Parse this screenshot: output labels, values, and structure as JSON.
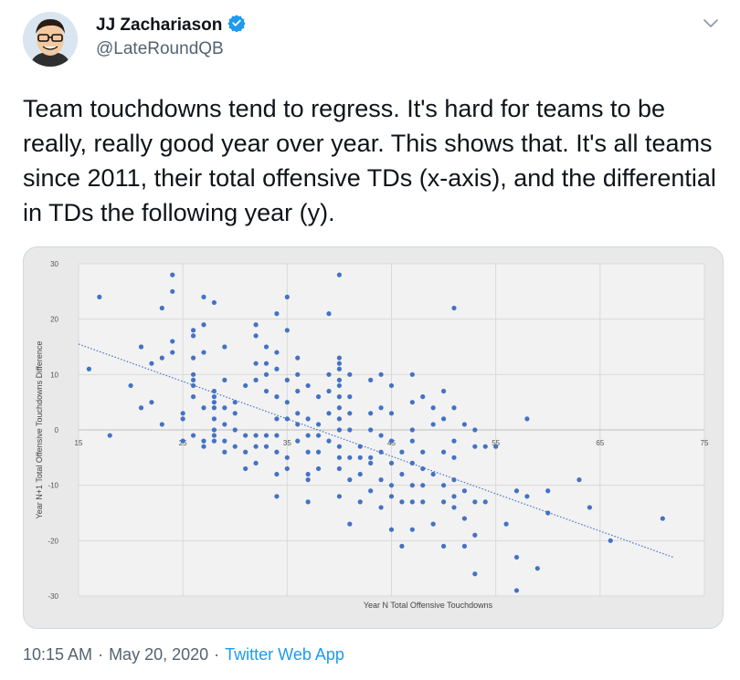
{
  "user": {
    "name": "JJ Zachariason",
    "handle": "@LateRoundQB"
  },
  "tweet": {
    "text": "Team touchdowns tend to regress. It's hard for teams to be really, really good year over year. This shows that. It's all teams since 2011, their total offensive TDs (x-axis), and the differential in TDs the following year (y).",
    "time": "10:15 AM",
    "dot": "·",
    "date": "May 20, 2020",
    "app": "Twitter Web App"
  },
  "icons": {
    "verified": "verified-badge-icon",
    "menu": "chevron-down-icon"
  },
  "colors": {
    "point": "#4472c4",
    "trend": "#4472c4",
    "chart_bg": "#ebebeb",
    "link": "#1d9bf0"
  },
  "chart_data": {
    "type": "scatter",
    "xlabel": "Year N Total Offensive Touchdowns",
    "ylabel": "Year N+1 Total Offensive Touchdowns Difference",
    "xlim": [
      15,
      75
    ],
    "ylim": [
      -30,
      30
    ],
    "x_ticks": [
      "15",
      "25",
      "35",
      "45",
      "55",
      "65",
      "75"
    ],
    "y_ticks": [
      "30",
      "20",
      "10",
      "0",
      "-10",
      "-20",
      "-30"
    ],
    "grid": true,
    "trendline": {
      "x": [
        15,
        72
      ],
      "y": [
        15.5,
        -23
      ]
    },
    "points": [
      [
        16,
        11
      ],
      [
        17,
        24
      ],
      [
        18,
        -1
      ],
      [
        20,
        8
      ],
      [
        21,
        15
      ],
      [
        21,
        4
      ],
      [
        22,
        12
      ],
      [
        22,
        5
      ],
      [
        23,
        22
      ],
      [
        23,
        1
      ],
      [
        23,
        13
      ],
      [
        24,
        14
      ],
      [
        24,
        16
      ],
      [
        24,
        25
      ],
      [
        24,
        28
      ],
      [
        25,
        3
      ],
      [
        25,
        -2
      ],
      [
        25,
        2
      ],
      [
        26,
        8
      ],
      [
        26,
        10
      ],
      [
        26,
        -1
      ],
      [
        26,
        9
      ],
      [
        26,
        17
      ],
      [
        26,
        13
      ],
      [
        26,
        6
      ],
      [
        26,
        18
      ],
      [
        27,
        24
      ],
      [
        27,
        19
      ],
      [
        27,
        14
      ],
      [
        27,
        4
      ],
      [
        27,
        -3
      ],
      [
        27,
        -2
      ],
      [
        28,
        23
      ],
      [
        28,
        7
      ],
      [
        28,
        6
      ],
      [
        28,
        5
      ],
      [
        28,
        4
      ],
      [
        28,
        2
      ],
      [
        28,
        0
      ],
      [
        28,
        -1
      ],
      [
        28,
        -2
      ],
      [
        29,
        -2
      ],
      [
        29,
        15
      ],
      [
        29,
        9
      ],
      [
        29,
        4
      ],
      [
        29,
        1
      ],
      [
        29,
        -4
      ],
      [
        30,
        5
      ],
      [
        30,
        3
      ],
      [
        30,
        -3
      ],
      [
        30,
        0
      ],
      [
        31,
        8
      ],
      [
        31,
        -1
      ],
      [
        31,
        -4
      ],
      [
        31,
        -7
      ],
      [
        32,
        19
      ],
      [
        32,
        17
      ],
      [
        32,
        12
      ],
      [
        32,
        9
      ],
      [
        32,
        -1
      ],
      [
        32,
        -3
      ],
      [
        32,
        -6
      ],
      [
        33,
        15
      ],
      [
        33,
        12
      ],
      [
        33,
        10
      ],
      [
        33,
        7
      ],
      [
        33,
        -3
      ],
      [
        33,
        -1
      ],
      [
        34,
        21
      ],
      [
        34,
        14
      ],
      [
        34,
        11
      ],
      [
        34,
        6
      ],
      [
        34,
        2
      ],
      [
        34,
        -1
      ],
      [
        34,
        -4
      ],
      [
        34,
        -12
      ],
      [
        34,
        -8
      ],
      [
        35,
        24
      ],
      [
        35,
        18
      ],
      [
        35,
        9
      ],
      [
        35,
        5
      ],
      [
        35,
        2
      ],
      [
        35,
        -5
      ],
      [
        35,
        -7
      ],
      [
        36,
        13
      ],
      [
        36,
        10
      ],
      [
        36,
        7
      ],
      [
        36,
        3
      ],
      [
        36,
        1
      ],
      [
        36,
        -2
      ],
      [
        37,
        8
      ],
      [
        37,
        2
      ],
      [
        37,
        -1
      ],
      [
        37,
        -4
      ],
      [
        37,
        -8
      ],
      [
        37,
        -9
      ],
      [
        37,
        -13
      ],
      [
        38,
        6
      ],
      [
        38,
        1
      ],
      [
        38,
        -1
      ],
      [
        38,
        -4
      ],
      [
        38,
        -7
      ],
      [
        39,
        21
      ],
      [
        39,
        10
      ],
      [
        39,
        7
      ],
      [
        39,
        3
      ],
      [
        39,
        -2
      ],
      [
        40,
        28
      ],
      [
        40,
        13
      ],
      [
        40,
        12
      ],
      [
        40,
        11
      ],
      [
        40,
        9
      ],
      [
        40,
        8
      ],
      [
        40,
        6
      ],
      [
        40,
        4
      ],
      [
        40,
        2
      ],
      [
        40,
        0
      ],
      [
        40,
        -3
      ],
      [
        40,
        -5
      ],
      [
        40,
        -7
      ],
      [
        40,
        -12
      ],
      [
        41,
        10
      ],
      [
        41,
        6
      ],
      [
        41,
        3
      ],
      [
        41,
        0
      ],
      [
        41,
        -5
      ],
      [
        41,
        -9
      ],
      [
        41,
        -17
      ],
      [
        42,
        -3
      ],
      [
        42,
        -5
      ],
      [
        42,
        -8
      ],
      [
        42,
        -13
      ],
      [
        43,
        9
      ],
      [
        43,
        3
      ],
      [
        43,
        0
      ],
      [
        43,
        -5
      ],
      [
        43,
        -6
      ],
      [
        43,
        -11
      ],
      [
        44,
        10
      ],
      [
        44,
        4
      ],
      [
        44,
        -1
      ],
      [
        44,
        -4
      ],
      [
        44,
        -9
      ],
      [
        44,
        -14
      ],
      [
        45,
        8
      ],
      [
        45,
        3
      ],
      [
        45,
        -2
      ],
      [
        45,
        -6
      ],
      [
        45,
        -10
      ],
      [
        45,
        -12
      ],
      [
        45,
        -18
      ],
      [
        46,
        -4
      ],
      [
        46,
        -8
      ],
      [
        46,
        -13
      ],
      [
        46,
        -21
      ],
      [
        47,
        10
      ],
      [
        47,
        5
      ],
      [
        47,
        0
      ],
      [
        47,
        -2
      ],
      [
        47,
        -6
      ],
      [
        47,
        -10
      ],
      [
        47,
        -13
      ],
      [
        47,
        -18
      ],
      [
        48,
        6
      ],
      [
        48,
        -4
      ],
      [
        48,
        -7
      ],
      [
        48,
        -10
      ],
      [
        48,
        -13
      ],
      [
        49,
        1
      ],
      [
        49,
        4
      ],
      [
        49,
        -8
      ],
      [
        49,
        -17
      ],
      [
        50,
        7
      ],
      [
        50,
        2
      ],
      [
        50,
        -4
      ],
      [
        50,
        -10
      ],
      [
        50,
        -13
      ],
      [
        50,
        -21
      ],
      [
        51,
        22
      ],
      [
        51,
        4
      ],
      [
        51,
        -2
      ],
      [
        51,
        -5
      ],
      [
        51,
        -9
      ],
      [
        51,
        -12
      ],
      [
        51,
        -14
      ],
      [
        52,
        1
      ],
      [
        52,
        -11
      ],
      [
        52,
        -16
      ],
      [
        52,
        -21
      ],
      [
        53,
        0
      ],
      [
        53,
        -3
      ],
      [
        53,
        -13
      ],
      [
        53,
        -19
      ],
      [
        53,
        -26
      ],
      [
        54,
        -3
      ],
      [
        54,
        -13
      ],
      [
        55,
        -3
      ],
      [
        56,
        -17
      ],
      [
        57,
        -11
      ],
      [
        57,
        -23
      ],
      [
        57,
        -29
      ],
      [
        58,
        2
      ],
      [
        58,
        -12
      ],
      [
        59,
        -25
      ],
      [
        60,
        -11
      ],
      [
        60,
        -15
      ],
      [
        63,
        -9
      ],
      [
        64,
        -14
      ],
      [
        66,
        -20
      ],
      [
        71,
        -16
      ]
    ]
  }
}
